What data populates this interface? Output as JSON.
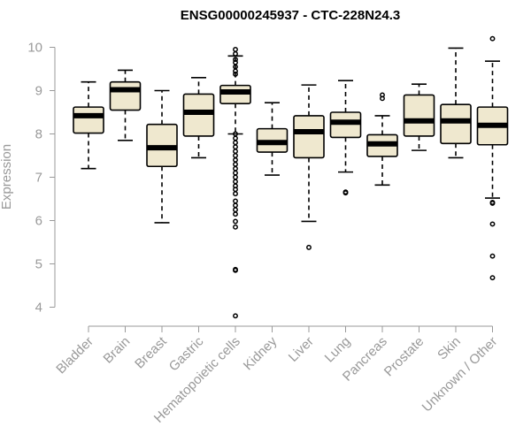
{
  "chart_data": {
    "type": "boxplot",
    "title": "ENSG00000245937 - CTC-228N24.3",
    "xlabel": "",
    "ylabel": "Expression",
    "ylim": [
      3.7,
      10.4
    ],
    "yticks": [
      4,
      5,
      6,
      7,
      8,
      9,
      10
    ],
    "colors": {
      "box_fill": "#EFE8CF",
      "box_stroke": "#000000",
      "axis": "#999999"
    },
    "categories": [
      "Bladder",
      "Brain",
      "Breast",
      "Gastric",
      "Hematopoietic cells",
      "Kidney",
      "Liver",
      "Lung",
      "Pancreas",
      "Prostate",
      "Skin",
      "Unknown / Other"
    ],
    "boxes": [
      {
        "category": "Bladder",
        "whisker_low": 7.2,
        "q1": 8.02,
        "median": 8.42,
        "q3": 8.62,
        "whisker_high": 9.2,
        "outliers": []
      },
      {
        "category": "Brain",
        "whisker_low": 7.85,
        "q1": 8.55,
        "median": 9.02,
        "q3": 9.2,
        "whisker_high": 9.47,
        "outliers": []
      },
      {
        "category": "Breast",
        "whisker_low": 5.95,
        "q1": 7.25,
        "median": 7.68,
        "q3": 8.22,
        "whisker_high": 9.0,
        "outliers": []
      },
      {
        "category": "Gastric",
        "whisker_low": 7.45,
        "q1": 7.95,
        "median": 8.5,
        "q3": 8.92,
        "whisker_high": 9.3,
        "outliers": []
      },
      {
        "category": "Hematopoietic cells",
        "whisker_low": 8.0,
        "q1": 8.7,
        "median": 8.97,
        "q3": 9.12,
        "whisker_high": 9.8,
        "outliers": [
          9.95,
          9.85,
          9.72,
          9.65,
          9.55,
          9.45,
          9.38,
          8.0,
          7.9,
          7.8,
          7.7,
          7.6,
          7.5,
          7.4,
          7.3,
          7.2,
          7.1,
          7.0,
          6.9,
          6.8,
          6.72,
          6.62,
          6.45,
          6.35,
          6.25,
          6.15,
          5.98,
          5.85,
          4.87,
          4.85,
          3.8
        ]
      },
      {
        "category": "Kidney",
        "whisker_low": 7.05,
        "q1": 7.58,
        "median": 7.8,
        "q3": 8.12,
        "whisker_high": 8.72,
        "outliers": []
      },
      {
        "category": "Liver",
        "whisker_low": 5.98,
        "q1": 7.45,
        "median": 8.05,
        "q3": 8.42,
        "whisker_high": 9.13,
        "outliers": [
          5.38
        ]
      },
      {
        "category": "Lung",
        "whisker_low": 7.12,
        "q1": 7.92,
        "median": 8.27,
        "q3": 8.5,
        "whisker_high": 9.23,
        "outliers": [
          6.66,
          6.64
        ]
      },
      {
        "category": "Pancreas",
        "whisker_low": 6.82,
        "q1": 7.48,
        "median": 7.77,
        "q3": 7.98,
        "whisker_high": 8.42,
        "outliers": [
          8.9,
          8.82
        ]
      },
      {
        "category": "Prostate",
        "whisker_low": 7.62,
        "q1": 7.95,
        "median": 8.3,
        "q3": 8.9,
        "whisker_high": 9.15,
        "outliers": []
      },
      {
        "category": "Skin",
        "whisker_low": 7.45,
        "q1": 7.78,
        "median": 8.3,
        "q3": 8.68,
        "whisker_high": 9.98,
        "outliers": []
      },
      {
        "category": "Unknown / Other",
        "whisker_low": 6.52,
        "q1": 7.75,
        "median": 8.2,
        "q3": 8.62,
        "whisker_high": 9.68,
        "outliers": [
          10.2,
          6.42,
          6.4,
          5.92,
          5.18,
          4.68
        ]
      }
    ]
  }
}
